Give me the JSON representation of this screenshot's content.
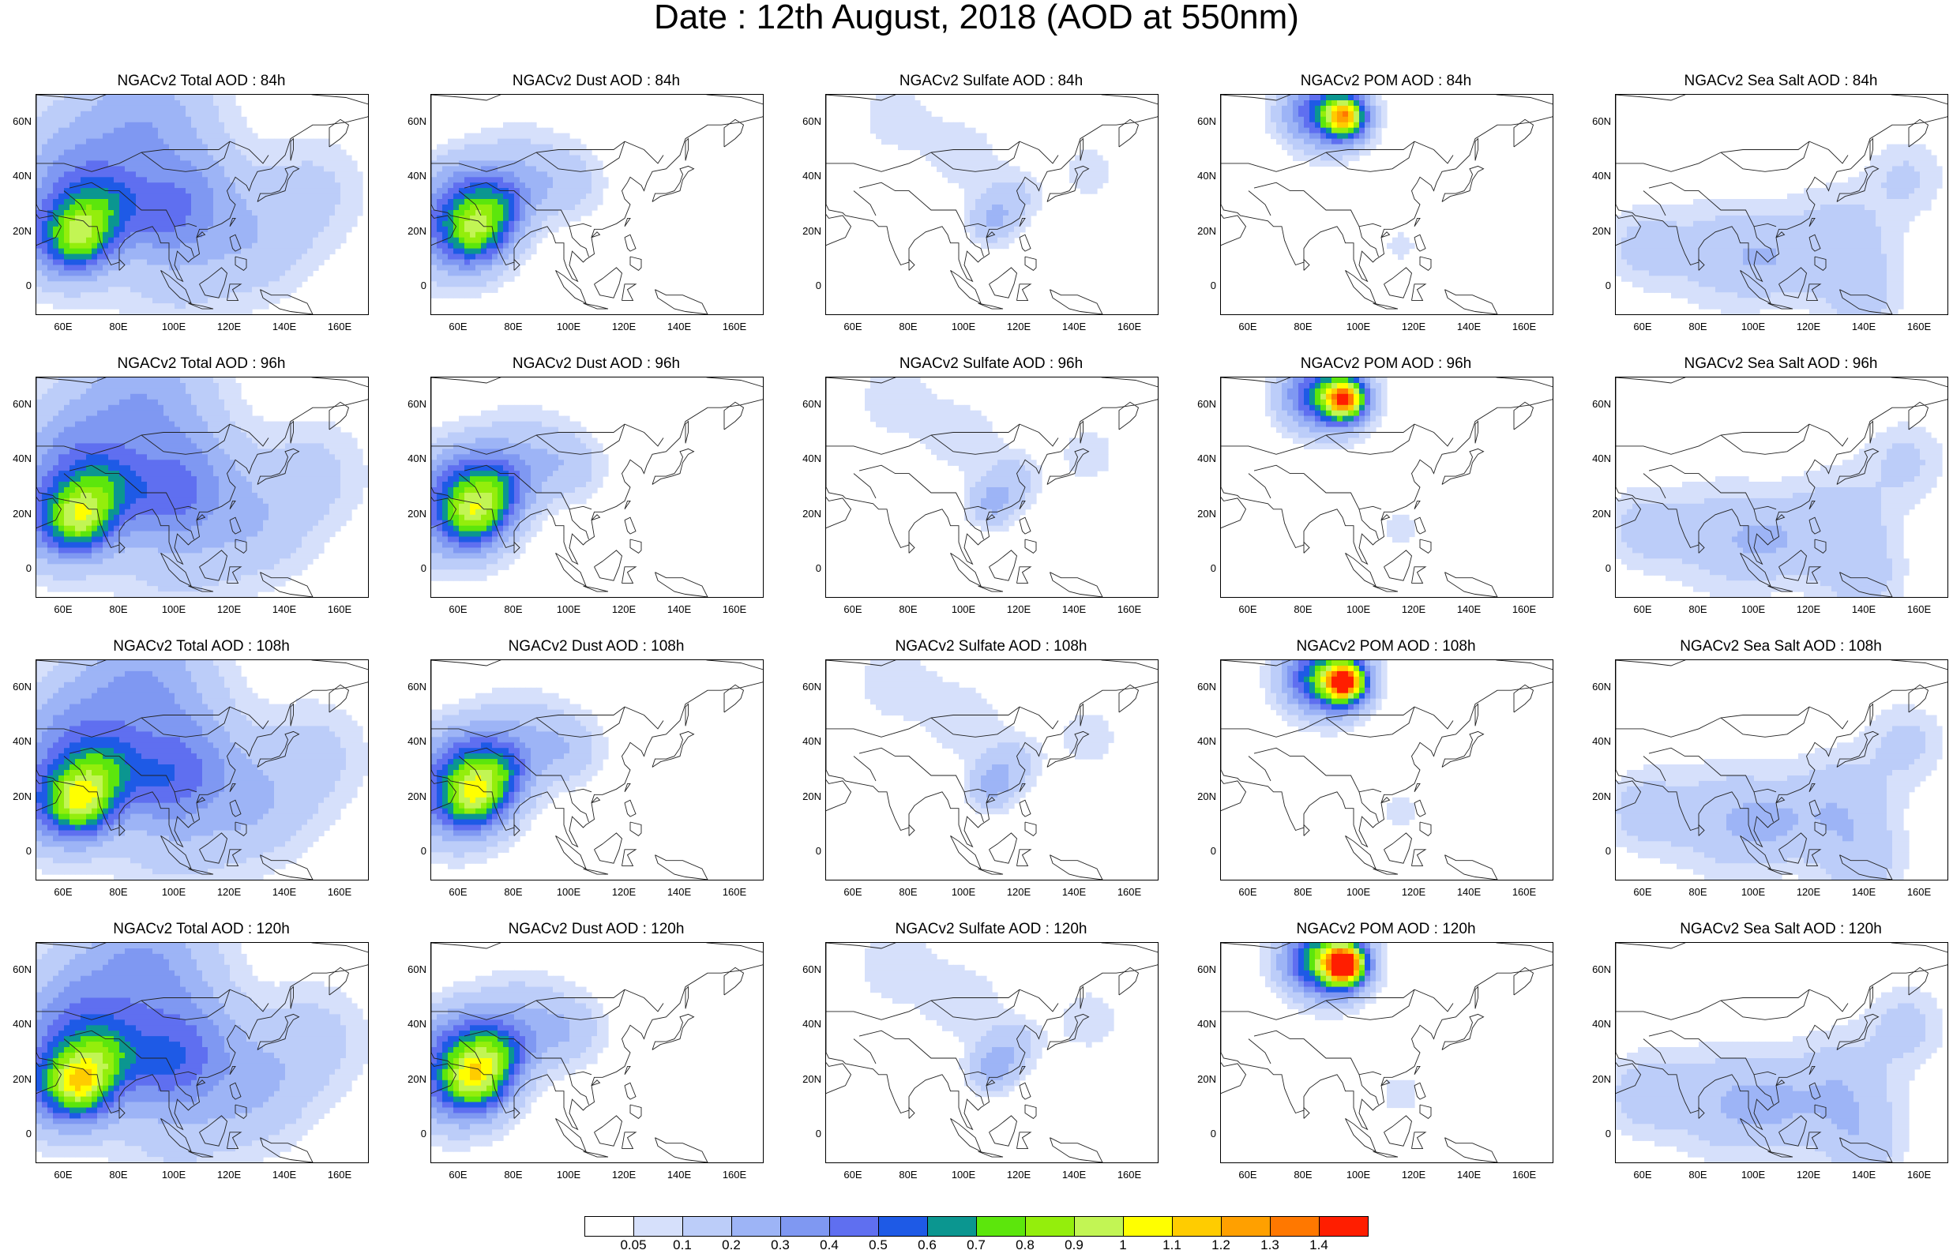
{
  "title": "Date : 12th August, 2018 (AOD at 550nm)",
  "panels": [
    {
      "title": "NGACv2 Total AOD : 84h",
      "species": "total",
      "hour": 84
    },
    {
      "title": "NGACv2 Dust AOD : 84h",
      "species": "dust",
      "hour": 84
    },
    {
      "title": "NGACv2 Sulfate AOD : 84h",
      "species": "sulfate",
      "hour": 84
    },
    {
      "title": "NGACv2 POM AOD : 84h",
      "species": "pom",
      "hour": 84
    },
    {
      "title": "NGACv2 Sea Salt AOD : 84h",
      "species": "seasalt",
      "hour": 84
    },
    {
      "title": "NGACv2 Total AOD : 96h",
      "species": "total",
      "hour": 96
    },
    {
      "title": "NGACv2 Dust AOD : 96h",
      "species": "dust",
      "hour": 96
    },
    {
      "title": "NGACv2 Sulfate AOD : 96h",
      "species": "sulfate",
      "hour": 96
    },
    {
      "title": "NGACv2 POM AOD : 96h",
      "species": "pom",
      "hour": 96
    },
    {
      "title": "NGACv2 Sea Salt AOD : 96h",
      "species": "seasalt",
      "hour": 96
    },
    {
      "title": "NGACv2 Total AOD : 108h",
      "species": "total",
      "hour": 108
    },
    {
      "title": "NGACv2 Dust AOD : 108h",
      "species": "dust",
      "hour": 108
    },
    {
      "title": "NGACv2 Sulfate AOD : 108h",
      "species": "sulfate",
      "hour": 108
    },
    {
      "title": "NGACv2 POM AOD : 108h",
      "species": "pom",
      "hour": 108
    },
    {
      "title": "NGACv2 Sea Salt AOD : 108h",
      "species": "seasalt",
      "hour": 108
    },
    {
      "title": "NGACv2 Total AOD : 120h",
      "species": "total",
      "hour": 120
    },
    {
      "title": "NGACv2 Dust AOD : 120h",
      "species": "dust",
      "hour": 120
    },
    {
      "title": "NGACv2 Sulfate AOD : 120h",
      "species": "sulfate",
      "hour": 120
    },
    {
      "title": "NGACv2 POM AOD : 120h",
      "species": "pom",
      "hour": 120
    },
    {
      "title": "NGACv2 Sea Salt  AOD : 120h",
      "species": "seasalt",
      "hour": 120
    }
  ],
  "map": {
    "lon_range": [
      50,
      170
    ],
    "lat_range": [
      -10,
      70
    ],
    "lat_ticks": [
      "60N",
      "40N",
      "20N",
      "0"
    ],
    "lon_ticks": [
      "60E",
      "80E",
      "100E",
      "120E",
      "140E",
      "160E"
    ]
  },
  "colorbar": {
    "colors": [
      "#ffffff",
      "#d6e0fb",
      "#bccdf9",
      "#9db4f6",
      "#7f98f2",
      "#5f6ff0",
      "#1e5ae6",
      "#0b9690",
      "#5ce60c",
      "#94ee0c",
      "#c2f554",
      "#ffff00",
      "#ffcc00",
      "#ffa000",
      "#ff7800",
      "#ff1e00"
    ],
    "labels": [
      "0.05",
      "0.1",
      "0.2",
      "0.3",
      "0.4",
      "0.5",
      "0.6",
      "0.7",
      "0.8",
      "0.9",
      "1",
      "1.1",
      "1.2",
      "1.3",
      "1.4"
    ]
  }
}
